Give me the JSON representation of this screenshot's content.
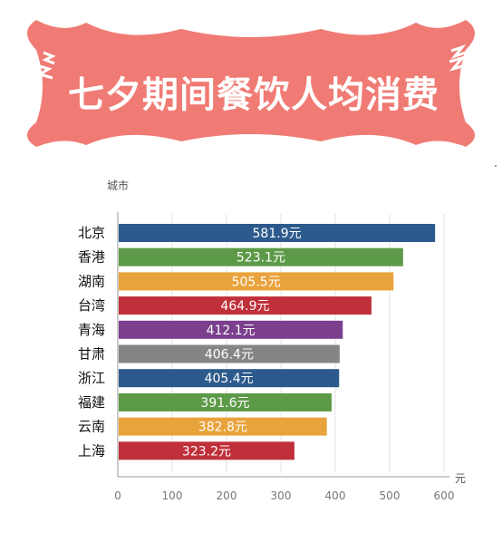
{
  "chart_data": {
    "type": "bar",
    "orientation": "horizontal",
    "title": "七夕期间餐饮人均消费",
    "ylabel": "城市",
    "xlabel": "元",
    "categories": [
      "北京",
      "香港",
      "湖南",
      "台湾",
      "青海",
      "甘肃",
      "浙江",
      "福建",
      "云南",
      "上海"
    ],
    "values": [
      581.9,
      523.1,
      505.5,
      464.9,
      412.1,
      406.4,
      405.4,
      391.6,
      382.8,
      323.2
    ],
    "value_labels": [
      "581.9元",
      "523.1元",
      "505.5元",
      "464.9元",
      "412.1元",
      "406.4元",
      "405.4元",
      "391.6元",
      "382.8元",
      "323.2元"
    ],
    "colors": [
      "#2d5a8c",
      "#5d9a48",
      "#e9a33c",
      "#c0303a",
      "#7b3f8e",
      "#858585",
      "#2d5a8c",
      "#5d9a48",
      "#e9a33c",
      "#c0303a"
    ],
    "xlim": [
      0,
      600
    ],
    "xticks": [
      "0",
      "100",
      "200",
      "300",
      "400",
      "500",
      "600"
    ],
    "grid": true,
    "banner_color": "#f07b74"
  }
}
